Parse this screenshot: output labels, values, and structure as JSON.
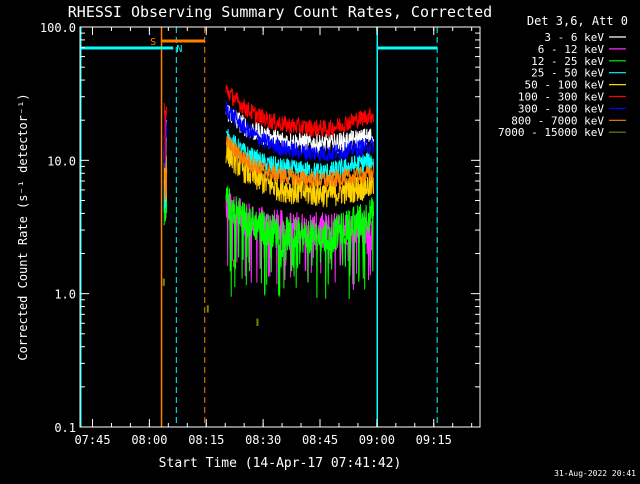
{
  "chart_data": {
    "type": "line",
    "title": "RHESSI Observing Summary Count Rates, Corrected",
    "xlabel": "Start Time (14-Apr-17 07:41:42)",
    "ylabel": "Corrected Count Rate (s⁻¹ detector⁻¹)",
    "y_scale": "log",
    "ylim": [
      0.1,
      100
    ],
    "xlim_minutes": [
      0,
      105.5
    ],
    "x_ticks": [
      {
        "label": "07:45",
        "minutes": 3.3
      },
      {
        "label": "08:00",
        "minutes": 18.3
      },
      {
        "label": "08:15",
        "minutes": 33.3
      },
      {
        "label": "08:30",
        "minutes": 48.3
      },
      {
        "label": "08:45",
        "minutes": 63.3
      },
      {
        "label": "09:00",
        "minutes": 78.3
      },
      {
        "label": "09:15",
        "minutes": 93.3
      }
    ],
    "y_ticks": [
      {
        "label": "0.1",
        "value": 0.1
      },
      {
        "label": "1.0",
        "value": 1.0
      },
      {
        "label": "10.0",
        "value": 10.0
      },
      {
        "label": "100.0",
        "value": 100.0
      }
    ],
    "legend_title": "Det 3,6, Att 0",
    "legend_placement": "top-right-outside",
    "series": [
      {
        "name": "3 - 6 keV",
        "color": "#ffffff",
        "legend_color": "#000000",
        "pre": 14,
        "start": 24,
        "mid": 13,
        "end": 15,
        "noise": 0.06
      },
      {
        "name": "6 - 12 keV",
        "color": "#ff2bff",
        "legend_color": "#ff2bff",
        "pre": 6,
        "start": 4.5,
        "mid": 3.0,
        "end": 3.2,
        "noise": 0.1,
        "dips": true
      },
      {
        "name": "12 - 25 keV",
        "color": "#00ff00",
        "legend_color": "#00ff00",
        "pre": 7,
        "start": 5,
        "mid": 2.6,
        "end": 4.0,
        "noise": 0.1,
        "dips": true
      },
      {
        "name": "25 - 50 keV",
        "color": "#00ffff",
        "legend_color": "#00ffff",
        "pre": 9,
        "start": 15,
        "mid": 8,
        "end": 10,
        "noise": 0.06
      },
      {
        "name": "50 - 100 keV",
        "color": "#ffd000",
        "legend_color": "#ffd000",
        "pre": 8,
        "start": 12,
        "mid": 5.5,
        "end": 6.5,
        "noise": 0.08
      },
      {
        "name": "100 - 300 keV",
        "color": "#ff0000",
        "legend_color": "#ff0000",
        "pre": 20,
        "start": 34,
        "mid": 17,
        "end": 22,
        "noise": 0.05
      },
      {
        "name": "300 - 800 keV",
        "color": "#0000ff",
        "legend_color": "#0000ff",
        "pre": 16,
        "start": 25,
        "mid": 11,
        "end": 13,
        "noise": 0.05
      },
      {
        "name": "800 - 7000 keV",
        "color": "#ff8000",
        "legend_color": "#ff8000",
        "pre": 10,
        "start": 14,
        "mid": 7,
        "end": 8,
        "noise": 0.05
      },
      {
        "name": "7000 - 15000 keV",
        "color": "#7f7f00",
        "legend_color": "#7f7f00",
        "pre": 1.3,
        "start": 0.6,
        "mid": 0.6,
        "end": 0.6,
        "noise": 0.0
      }
    ],
    "flags": [
      {
        "label": "S",
        "color": "#ff8000"
      },
      {
        "label": "N",
        "color": "#00ffff"
      }
    ],
    "footer_timestamp": "31-Aug-2022 20:41"
  }
}
